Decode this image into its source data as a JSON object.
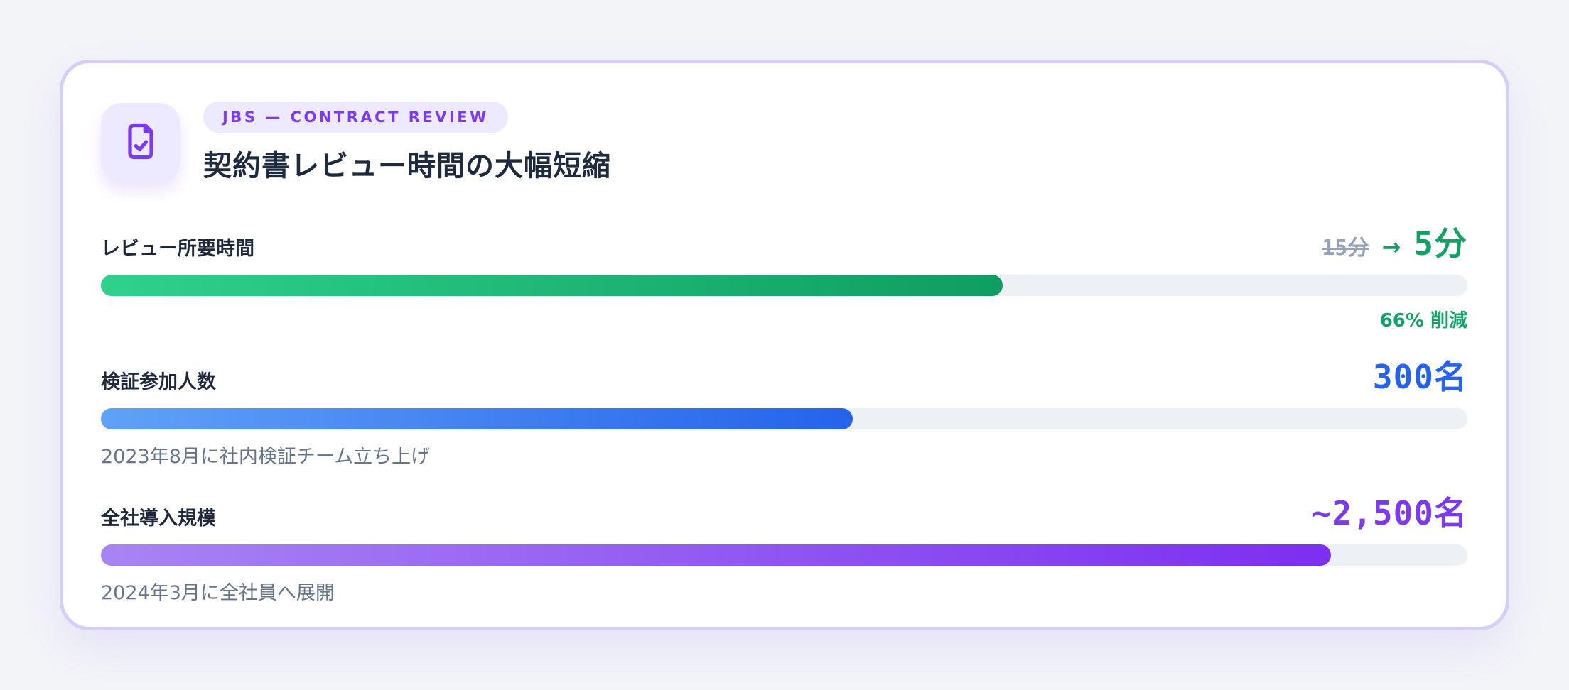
{
  "page": {
    "background": "#f3f4f8"
  },
  "card": {
    "icon": "document-check-icon",
    "badge": "JBS — CONTRACT REVIEW",
    "title": "契約書レビュー時間の大幅短縮",
    "accent_color": "#7c3aed",
    "border_color": "#d7cdf6"
  },
  "chart_data": {
    "type": "bar",
    "title": "契約書レビュー時間の大幅短縮",
    "xlim_percent": [
      0,
      100
    ],
    "track_color": "#edf1f5",
    "metrics": [
      {
        "label": "レビュー所要時間",
        "before_value": "15分",
        "arrow": "→",
        "after_value": "5分",
        "percent": 66,
        "note": "66% 削減",
        "color_start": "#2fd18c",
        "color_end": "#0e9e62",
        "value_color": "#14a066",
        "before_color": "#94a3b8"
      },
      {
        "label": "検証参加人数",
        "value": "300名",
        "percent": 55,
        "caption": "2023年8月に社内検証チーム立ち上げ",
        "color_start": "#5fa2f7",
        "color_end": "#2563eb",
        "value_color": "#2563eb",
        "caption_color": "#64748b"
      },
      {
        "label": "全社導入規模",
        "value": "~2,500名",
        "percent": 90,
        "caption": "2024年3月に全社員へ展開",
        "color_start": "#a884f3",
        "color_end": "#7c2ff0",
        "value_color": "#7c3aed",
        "caption_color": "#64748b"
      }
    ]
  }
}
